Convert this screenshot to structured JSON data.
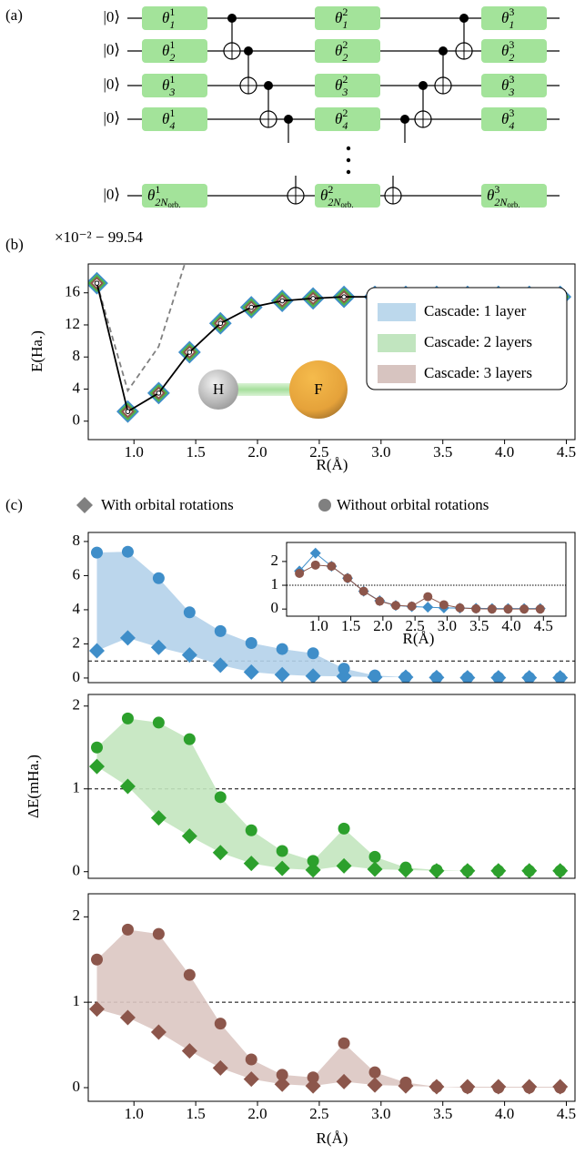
{
  "circuit": {
    "panel_label": "(a)",
    "ket": "|0⟩",
    "gate_symbol": "θ",
    "layers": [
      "1",
      "2",
      "3"
    ],
    "qubits": [
      "1",
      "2",
      "3",
      "4",
      "2N"
    ],
    "last_qubit_subscript": "orb."
  },
  "chart_data": [
    {
      "type": "line",
      "panel_label": "(b)",
      "offset_text": "×10⁻² − 99.54",
      "ylabel": "E(Ha.)",
      "xlabel": "R(Å)",
      "annotations": [
        "H",
        "F"
      ],
      "x": [
        0.7,
        0.95,
        1.2,
        1.45,
        1.7,
        1.95,
        2.2,
        2.45,
        2.7,
        2.95,
        3.2,
        3.45,
        3.7,
        3.95,
        4.2,
        4.45
      ],
      "xlim": [
        0.63,
        4.57
      ],
      "ylim": [
        -2.3,
        19.6
      ],
      "xticks": [
        {
          "value": 1,
          "label": "1.0"
        },
        1.5,
        {
          "value": 2,
          "label": "2.0"
        },
        2.5,
        {
          "value": 3,
          "label": "3.0"
        },
        3.5,
        {
          "value": 4,
          "label": "4.0"
        },
        4.5
      ],
      "yticks": [
        0,
        4,
        8,
        12,
        16
      ],
      "legend": "lower right",
      "series": [
        {
          "color": "#808080",
          "line": "dashed",
          "values": [
            17.2,
            3.8,
            9.3,
            21.5,
            null,
            null,
            null,
            null,
            null,
            null,
            null,
            null,
            null,
            null,
            null,
            null
          ]
        },
        {
          "name": "Cascade: 1 layer",
          "color": "#3f8ec9",
          "marker": "D",
          "values": [
            17.2,
            1.2,
            3.5,
            8.6,
            12.2,
            14.2,
            15.0,
            15.3,
            15.5,
            15.5,
            15.5,
            15.5,
            15.5,
            15.5,
            15.5,
            15.5
          ]
        },
        {
          "name": "Cascade: 2 layers",
          "color": "#4cb548",
          "marker": "D",
          "values": [
            17.2,
            1.2,
            3.5,
            8.6,
            12.2,
            14.2,
            15.0,
            15.3,
            15.5,
            15.5,
            15.5,
            15.5,
            15.5,
            15.5,
            15.5,
            15.5
          ]
        },
        {
          "name": "Cascade: 3 layers",
          "color": "#8c564b",
          "marker": "D",
          "values": [
            17.2,
            1.2,
            3.5,
            8.6,
            12.2,
            14.2,
            15.0,
            15.3,
            15.5,
            15.5,
            15.5,
            15.5,
            15.5,
            15.5,
            15.5,
            15.5
          ]
        },
        {
          "color": "#000000",
          "line": "solid",
          "marker": "point",
          "values": [
            17.2,
            1.2,
            3.5,
            8.6,
            12.2,
            14.2,
            15.0,
            15.3,
            15.5,
            15.5,
            15.5,
            15.5,
            15.5,
            15.5,
            15.5,
            15.5
          ]
        }
      ]
    },
    {
      "type": "scatter",
      "panel_label": "(c)",
      "legend_color": "#808080",
      "x": [
        0.7,
        0.95,
        1.2,
        1.45,
        1.7,
        1.95,
        2.2,
        2.45,
        2.7,
        2.95,
        3.2,
        3.45,
        3.7,
        3.95,
        4.2,
        4.45
      ],
      "xlim": [
        0.63,
        4.57
      ],
      "ylim": [
        -0.27,
        8.53
      ],
      "yticks": [
        0,
        2,
        4,
        6,
        8
      ],
      "hline": 1,
      "fill_color": "#b4d2ea",
      "series": [
        {
          "name": "With orbital rotations",
          "color": "#3f8ec9",
          "marker": "D",
          "values": [
            1.6,
            2.35,
            1.8,
            1.35,
            0.75,
            0.35,
            0.2,
            0.12,
            0.1,
            0.05,
            0.05,
            0.03,
            0.02,
            0.02,
            0.02,
            0.02
          ]
        },
        {
          "name": "Without orbital rotations",
          "color": "#3f8ec9",
          "marker": "o",
          "values": [
            7.35,
            7.4,
            5.85,
            3.85,
            2.75,
            2.05,
            1.7,
            1.45,
            0.55,
            0.15,
            0.05,
            0.03,
            0.02,
            0.02,
            0.02,
            0.02
          ]
        }
      ]
    },
    {
      "type": "line",
      "xlabel": "R(Å)",
      "x": [
        0.7,
        0.95,
        1.2,
        1.45,
        1.7,
        1.95,
        2.2,
        2.45,
        2.7,
        2.95,
        3.2,
        3.45,
        3.7,
        3.95,
        4.2,
        4.45
      ],
      "xlim": [
        0.5,
        4.85
      ],
      "ylim": [
        -0.3,
        2.8
      ],
      "xticks": [
        {
          "value": 1,
          "label": "1.0"
        },
        1.5,
        {
          "value": 2,
          "label": "2.0"
        },
        2.5,
        {
          "value": 3,
          "label": "3.0"
        },
        3.5,
        {
          "value": 4,
          "label": "4.0"
        },
        4.5
      ],
      "yticks": [
        0,
        1,
        2
      ],
      "hline": 1,
      "series": [
        {
          "color": "#3f8ec9",
          "marker": "D",
          "line": "solid",
          "values": [
            1.6,
            2.35,
            1.8,
            1.3,
            0.75,
            0.35,
            0.15,
            0.1,
            0.08,
            0.05,
            0.04,
            0.03,
            0.02,
            0.02,
            0.02,
            0.02
          ]
        },
        {
          "color": "#8c564b",
          "marker": "o",
          "line": "solid",
          "values": [
            1.5,
            1.85,
            1.8,
            1.3,
            0.75,
            0.33,
            0.15,
            0.12,
            0.52,
            0.18,
            0.05,
            0.01,
            0.0,
            0.0,
            0.0,
            0.0
          ]
        }
      ]
    },
    {
      "type": "scatter",
      "ylabel": "ΔE(mHa.)",
      "x": [
        0.7,
        0.95,
        1.2,
        1.45,
        1.7,
        1.95,
        2.2,
        2.45,
        2.7,
        2.95,
        3.2,
        3.45,
        3.7,
        3.95,
        4.2,
        4.45
      ],
      "xlim": [
        0.63,
        4.57
      ],
      "ylim": [
        -0.08,
        2.14
      ],
      "yticks": [
        0,
        1,
        2
      ],
      "hline": 1,
      "fill_color": "#c3e6bf",
      "series": [
        {
          "color": "#2ca02c",
          "marker": "D",
          "values": [
            1.27,
            1.03,
            0.65,
            0.43,
            0.23,
            0.1,
            0.04,
            0.02,
            0.07,
            0.03,
            0.02,
            0.01,
            0.01,
            0.01,
            0.01,
            0.01
          ]
        },
        {
          "color": "#2ca02c",
          "marker": "o",
          "values": [
            1.5,
            1.85,
            1.8,
            1.6,
            0.9,
            0.5,
            0.25,
            0.13,
            0.52,
            0.18,
            0.05,
            0.02,
            0.01,
            0.01,
            0.01,
            0.01
          ]
        }
      ]
    },
    {
      "type": "scatter",
      "xlabel": "R(Å)",
      "x": [
        0.7,
        0.95,
        1.2,
        1.45,
        1.7,
        1.95,
        2.2,
        2.45,
        2.7,
        2.95,
        3.2,
        3.45,
        3.7,
        3.95,
        4.2,
        4.45
      ],
      "xlim": [
        0.63,
        4.57
      ],
      "ylim": [
        -0.16,
        2.27
      ],
      "xticks": [
        {
          "value": 1,
          "label": "1.0"
        },
        1.5,
        {
          "value": 2,
          "label": "2.0"
        },
        2.5,
        {
          "value": 3,
          "label": "3.0"
        },
        3.5,
        {
          "value": 4,
          "label": "4.0"
        },
        4.5
      ],
      "yticks": [
        0,
        1,
        2
      ],
      "hline": 1,
      "fill_color": "#dcc7c2",
      "series": [
        {
          "color": "#8c564b",
          "marker": "D",
          "values": [
            0.92,
            0.82,
            0.65,
            0.43,
            0.23,
            0.1,
            0.04,
            0.02,
            0.07,
            0.03,
            0.02,
            0.01,
            0.01,
            0.01,
            0.01,
            0.01
          ]
        },
        {
          "color": "#8c564b",
          "marker": "o",
          "values": [
            1.5,
            1.85,
            1.8,
            1.32,
            0.75,
            0.33,
            0.15,
            0.12,
            0.52,
            0.18,
            0.06,
            0.01,
            0.0,
            0.0,
            0.0,
            0.0
          ]
        }
      ]
    }
  ]
}
